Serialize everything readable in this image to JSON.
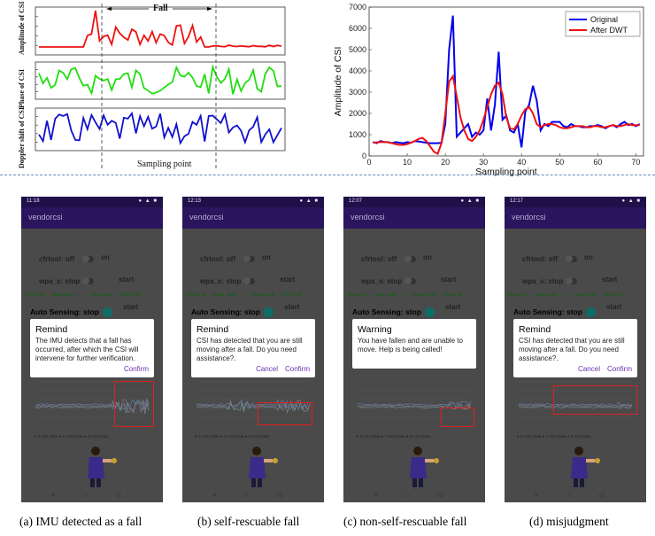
{
  "csi_panel": {
    "fall_label": "Fall",
    "ylabels": [
      "Amplitude of CSI",
      "Phase of CSI",
      "Doppler shift of CSI"
    ],
    "xlabel": "Sampling point",
    "colors": [
      "#ee1111",
      "#22dd11",
      "#1111cc"
    ]
  },
  "chart_data": [
    {
      "type": "line",
      "title": "",
      "xlabel": "Sampling point",
      "ylabel": "Amplitude of CSI",
      "xlim": [
        0,
        72
      ],
      "ylim": [
        0,
        7000
      ],
      "xticks": [
        "0",
        "10",
        "20",
        "30",
        "40",
        "50",
        "60",
        "70"
      ],
      "yticks": [
        "0",
        "1000",
        "2000",
        "3000",
        "4000",
        "5000",
        "6000",
        "7000"
      ],
      "legend_position": "top-right",
      "series": [
        {
          "name": "Original",
          "color": "#0000ee",
          "x": [
            1,
            2,
            3,
            4,
            5,
            6,
            7,
            8,
            9,
            10,
            11,
            12,
            13,
            14,
            15,
            16,
            17,
            18,
            19,
            20,
            21,
            22,
            23,
            24,
            25,
            26,
            27,
            28,
            29,
            30,
            31,
            32,
            33,
            34,
            35,
            36,
            37,
            38,
            39,
            40,
            41,
            42,
            43,
            44,
            45,
            46,
            47,
            48,
            49,
            50,
            51,
            52,
            53,
            54,
            55,
            56,
            57,
            58,
            59,
            60,
            61,
            62,
            63,
            64,
            65,
            66,
            67,
            68,
            69,
            70,
            71
          ],
          "values": [
            650,
            600,
            700,
            650,
            650,
            600,
            650,
            620,
            600,
            650,
            620,
            700,
            680,
            650,
            620,
            600,
            600,
            600,
            620,
            1500,
            5000,
            6600,
            900,
            1100,
            1300,
            1500,
            900,
            1100,
            1000,
            1200,
            2700,
            1200,
            2400,
            4900,
            1700,
            1900,
            1200,
            1100,
            1500,
            400,
            2100,
            2400,
            3300,
            2600,
            1200,
            1500,
            1400,
            1600,
            1600,
            1600,
            1400,
            1350,
            1500,
            1400,
            1400,
            1350,
            1350,
            1400,
            1400,
            1450,
            1400,
            1300,
            1400,
            1450,
            1350,
            1500,
            1600,
            1450,
            1500,
            1400,
            1500
          ]
        },
        {
          "name": "After DWT",
          "color": "#ee1111",
          "x": [
            1,
            2,
            3,
            4,
            5,
            6,
            7,
            8,
            9,
            10,
            11,
            12,
            13,
            14,
            15,
            16,
            17,
            18,
            19,
            20,
            21,
            22,
            23,
            24,
            25,
            26,
            27,
            28,
            29,
            30,
            31,
            32,
            33,
            34,
            35,
            36,
            37,
            38,
            39,
            40,
            41,
            42,
            43,
            44,
            45,
            46,
            47,
            48,
            49,
            50,
            51,
            52,
            53,
            54,
            55,
            56,
            57,
            58,
            59,
            60,
            61,
            62,
            63,
            64,
            65,
            66,
            67,
            68,
            69,
            70,
            71
          ],
          "values": [
            620,
            640,
            650,
            660,
            640,
            600,
            560,
            520,
            520,
            560,
            620,
            700,
            800,
            850,
            700,
            450,
            200,
            100,
            600,
            2000,
            3500,
            3750,
            2800,
            1800,
            1200,
            800,
            700,
            900,
            1200,
            1700,
            2300,
            2900,
            3300,
            3450,
            2900,
            1800,
            1300,
            1250,
            1500,
            1900,
            2200,
            2300,
            2000,
            1500,
            1350,
            1450,
            1500,
            1500,
            1450,
            1350,
            1300,
            1300,
            1350,
            1400,
            1400,
            1400,
            1350,
            1350,
            1400,
            1400,
            1350,
            1350,
            1400,
            1450,
            1400,
            1400,
            1450,
            1500,
            1450,
            1450,
            1450
          ]
        }
      ]
    }
  ],
  "screens": [
    {
      "time": "11:18",
      "app_title": "vendorcsi",
      "cfrtool_label": "cfrtool: off",
      "on_label": "on",
      "wpa_label": "wpa_s: stop",
      "start_label": "start",
      "cmd_text": "cfrtool on → wpas start → ... → wpas stop → cfrtool off",
      "auto_label": "Auto Sensing: stop",
      "auto_start": "start",
      "dialog_title": "Remind",
      "dialog_msg": "The IMU detects that a fall has occurred, after which the CSI will intervene for further verification.",
      "btn_cancel": "",
      "btn_confirm": "Confirm",
      "legend": "● X Axis Data   ● Y Axis Data   ● Z Axis Data",
      "caption": "(a) IMU detected as a fall"
    },
    {
      "time": "12:13",
      "app_title": "vendorcsi",
      "cfrtool_label": "cfrtool: off",
      "on_label": "on",
      "wpa_label": "wpa_s: stop",
      "start_label": "start",
      "cmd_text": "cfrtool on → wpas start → ... → wpas stop → cfrtool off",
      "auto_label": "Auto Sensing: stop",
      "auto_start": "start",
      "dialog_title": "Remind",
      "dialog_msg": "CSI has detected that you are still moving after a fall. Do you need assistance?.",
      "btn_cancel": "Cancel",
      "btn_confirm": "Confirm",
      "legend": "● X Axis Data   ● Y Axis Data   ● Z Axis Data",
      "caption": "(b) self-rescuable fall"
    },
    {
      "time": "12:07",
      "app_title": "vendorcsi",
      "cfrtool_label": "cfrtool: off",
      "on_label": "on",
      "wpa_label": "wpa_s: stop",
      "start_label": "start",
      "cmd_text": "cfrtool on → wpas start → ... → wpas stop → cfrtool off",
      "auto_label": "Auto Sensing: stop",
      "auto_start": "start",
      "dialog_title": "Warning",
      "dialog_msg": "You have fallen and are unable to move. Help is being called!",
      "btn_cancel": "",
      "btn_confirm": "",
      "legend": "● X Axis Data   ● Y Axis Data   ● Z Axis Data",
      "caption": "(c) non-self-rescuable fall"
    },
    {
      "time": "12:17",
      "app_title": "vendorcsi",
      "cfrtool_label": "cfrtool: off",
      "on_label": "on",
      "wpa_label": "wpa_s: stop",
      "start_label": "start",
      "cmd_text": "cfrtool on → wpas start → ... → wpas stop → cfrtool off",
      "auto_label": "Auto Sensing: stop",
      "auto_start": "start",
      "dialog_title": "Remind",
      "dialog_msg": "CSI has detected that you are still moving after a fall. Do you need assistance?.",
      "btn_cancel": "Cancel",
      "btn_confirm": "Confirm",
      "legend": "● X Axis Data   ● Y Axis Data   ● Z Axis Data",
      "caption": "(d) misjudgment"
    }
  ]
}
